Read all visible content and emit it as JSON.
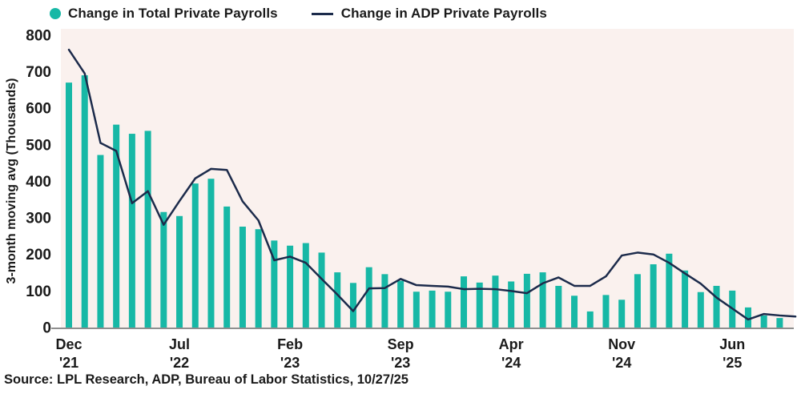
{
  "legend": {
    "series1_label": "Change in Total Private Payrolls",
    "series2_label": "Change in ADP Private Payrolls"
  },
  "y_axis_title": "3-month moving avg (Thousands)",
  "footer": {
    "source_text": "Source: LPL Research, ADP, Bureau of Labor Statistics, 10/27/25"
  },
  "colors": {
    "bar_teal": "#17b8a6",
    "line_navy": "#1c2b4b",
    "plot_bg": "#faf1ee",
    "axis_gray": "#8f8f8f",
    "text_dark": "#1a1a1a"
  },
  "chart_data": {
    "type": "combo-bar-line",
    "title": "",
    "ylabel": "3-month moving avg (Thousands)",
    "ylim": [
      0,
      800
    ],
    "y_ticks": [
      0,
      100,
      200,
      300,
      400,
      500,
      600,
      700,
      800
    ],
    "grid": false,
    "legend_position": "top",
    "categories": [
      "Dec '21",
      "Jan '22",
      "Feb '22",
      "Mar '22",
      "Apr '22",
      "May '22",
      "Jun '22",
      "Jul '22",
      "Aug '22",
      "Sep '22",
      "Oct '22",
      "Nov '22",
      "Dec '22",
      "Jan '23",
      "Feb '23",
      "Mar '23",
      "Apr '23",
      "May '23",
      "Jun '23",
      "Jul '23",
      "Aug '23",
      "Sep '23",
      "Oct '23",
      "Nov '23",
      "Dec '23",
      "Jan '24",
      "Feb '24",
      "Mar '24",
      "Apr '24",
      "May '24",
      "Jun '24",
      "Jul '24",
      "Aug '24",
      "Sep '24",
      "Oct '24",
      "Nov '24",
      "Dec '24",
      "Jan '25",
      "Feb '25",
      "Mar '25",
      "Apr '25",
      "May '25",
      "Jun '25",
      "Jul '25",
      "Aug '25",
      "Sep '25",
      "Oct '25"
    ],
    "x_ticks": [
      {
        "index": 0,
        "month": "Dec",
        "year": "'21"
      },
      {
        "index": 7,
        "month": "Jul",
        "year": "'22"
      },
      {
        "index": 14,
        "month": "Feb",
        "year": "'23"
      },
      {
        "index": 21,
        "month": "Sep",
        "year": "'23"
      },
      {
        "index": 28,
        "month": "Apr",
        "year": "'24"
      },
      {
        "index": 35,
        "month": "Nov",
        "year": "'24"
      },
      {
        "index": 42,
        "month": "Jun",
        "year": "'25"
      }
    ],
    "series": [
      {
        "name": "Change in Total Private Payrolls",
        "type": "bar",
        "color": "#17b8a6",
        "values": [
          670,
          690,
          472,
          555,
          530,
          538,
          316,
          305,
          394,
          407,
          331,
          276,
          269,
          238,
          224,
          231,
          205,
          151,
          122,
          165,
          146,
          128,
          98,
          101,
          98,
          140,
          123,
          142,
          126,
          147,
          151,
          114,
          87,
          44,
          89,
          76,
          146,
          173,
          202,
          156,
          97,
          114,
          101,
          55,
          33,
          26,
          null
        ]
      },
      {
        "name": "Change in ADP Private Payrolls",
        "type": "line",
        "color": "#1c2b4b",
        "values": [
          760,
          695,
          505,
          483,
          340,
          373,
          281,
          346,
          408,
          434,
          431,
          345,
          293,
          184,
          194,
          177,
          133,
          90,
          45,
          107,
          108,
          133,
          116,
          114,
          112,
          105,
          106,
          105,
          100,
          94,
          121,
          137,
          114,
          114,
          140,
          197,
          205,
          200,
          177,
          148,
          120,
          82,
          52,
          22,
          37,
          33,
          30
        ]
      }
    ]
  }
}
